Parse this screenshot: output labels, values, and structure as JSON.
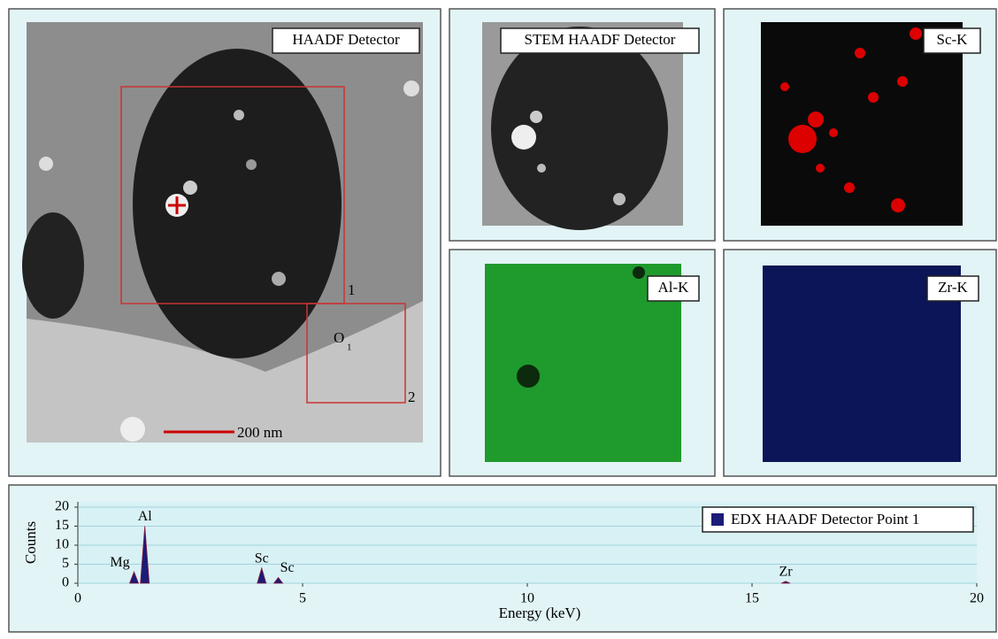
{
  "panels": [
    {
      "label": "HAADF Detector"
    },
    {
      "label": "STEM HAADF Detector"
    },
    {
      "label": "Sc-K"
    },
    {
      "label": "Al-K"
    },
    {
      "label": "Zr-K"
    }
  ],
  "annotations": {
    "box1": "1",
    "box2": "2",
    "point": "O",
    "point_sub": "1",
    "scale_bar": "200 nm"
  },
  "chart_data": {
    "type": "spectrum",
    "x_label": "Energy (keV)",
    "y_label": "Counts",
    "x": [
      1.25,
      1.49,
      4.09,
      4.46,
      15.75
    ],
    "peak_labels": [
      "Mg",
      "Al",
      "Sc",
      "Sc",
      "Zr"
    ],
    "series": [
      {
        "name": "EDX HAADF Detector Point 1",
        "color": "#1b1b78",
        "values": [
          3,
          15,
          4,
          1.5,
          0.5
        ]
      }
    ],
    "xlim": [
      0,
      20
    ],
    "xticks": [
      0,
      5,
      10,
      15,
      20
    ],
    "ylim": [
      0,
      20
    ],
    "yticks": [
      0,
      5,
      10,
      15,
      20
    ],
    "grid": true,
    "legend": "top-right"
  }
}
